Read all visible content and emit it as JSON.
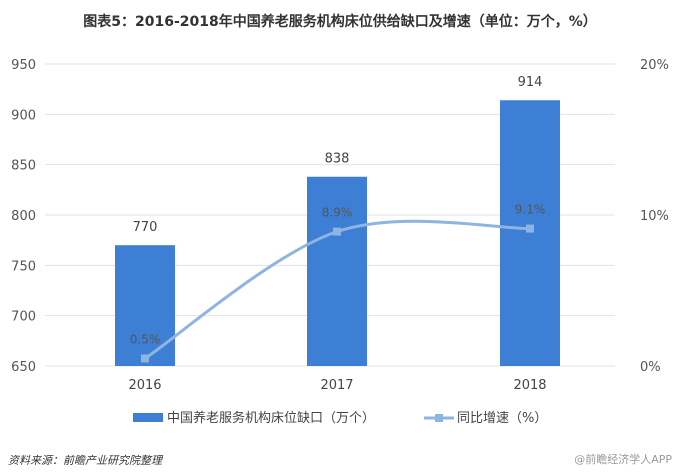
{
  "chart_data": {
    "type": "bar+line",
    "title": "图表5：2016-2018年中国养老服务机构床位供给缺口及增速（单位：万个，%）",
    "categories": [
      "2016",
      "2017",
      "2018"
    ],
    "series": [
      {
        "name": "中国养老服务机构床位缺口（万个）",
        "type": "bar",
        "axis": "left",
        "values": [
          770,
          838,
          914
        ],
        "labels": [
          "770",
          "838",
          "914"
        ],
        "color": "#3E7FD6"
      },
      {
        "name": "同比增速（%）",
        "type": "line",
        "axis": "right",
        "values": [
          0.5,
          8.9,
          9.1
        ],
        "labels": [
          "0.5%",
          "8.9%",
          "9.1%"
        ],
        "color": "#8DB4E2"
      }
    ],
    "left_axis": {
      "ylim": [
        650,
        950
      ],
      "ticks": [
        "650",
        "700",
        "750",
        "800",
        "850",
        "900",
        "950"
      ]
    },
    "right_axis": {
      "ylim": [
        0,
        20
      ],
      "ticks": [
        "0%",
        "10%",
        "20%"
      ]
    },
    "grid": true,
    "legend": "bottom"
  },
  "source": "资料来源：前瞻产业研究院整理",
  "watermark": "@前瞻经济学人APP"
}
